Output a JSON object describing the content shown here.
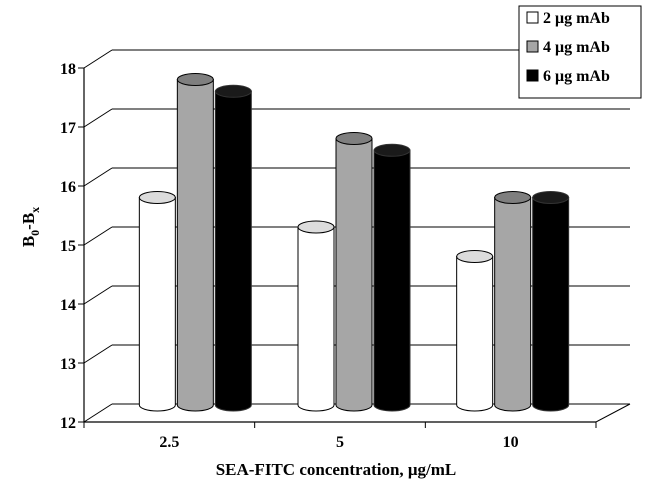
{
  "chart_data": {
    "type": "bar",
    "categories": [
      "2.5",
      "5",
      "10"
    ],
    "series": [
      {
        "name": "2 μg mAb",
        "values": [
          15.5,
          15.0,
          14.5
        ],
        "color": "#ffffff"
      },
      {
        "name": "4 μg mAb",
        "values": [
          17.5,
          16.5,
          15.5
        ],
        "color": "#a6a6a6"
      },
      {
        "name": "6 μg mAb",
        "values": [
          17.3,
          16.3,
          15.5
        ],
        "color": "#000000"
      }
    ],
    "xlabel": "SEA-FITC concentration, μg/mL",
    "ylabel": {
      "main": "B",
      "sub1": "0",
      "dash": "-B",
      "sub2": "x"
    },
    "ylim": [
      12,
      18
    ],
    "yticks": [
      "12",
      "13",
      "14",
      "15",
      "16",
      "17",
      "18"
    ],
    "grid": true,
    "legend_position": "top-right",
    "style": "3d-cylinder"
  }
}
